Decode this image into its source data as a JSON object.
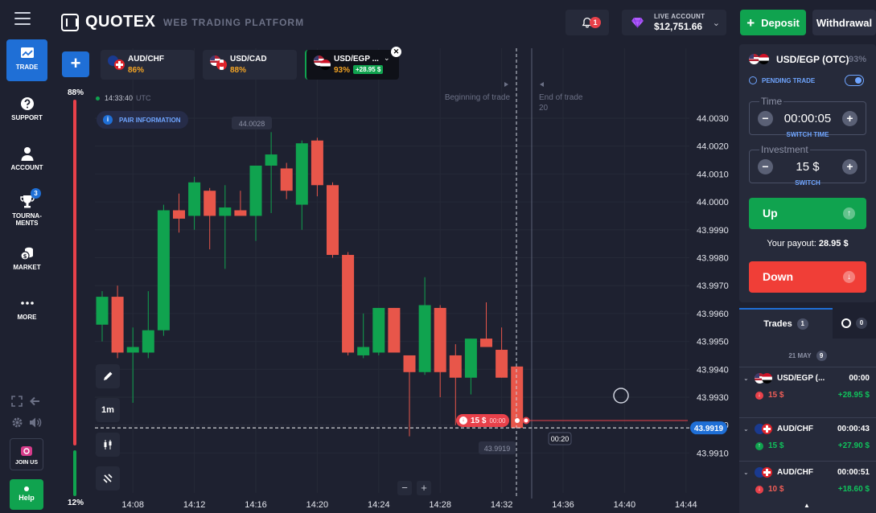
{
  "header": {
    "logo": "QUOTEX",
    "platform": "WEB TRADING PLATFORM",
    "notifications": "1",
    "account_label": "LIVE ACCOUNT",
    "account_balance": "$12,751.66",
    "deposit": "Deposit",
    "withdrawal": "Withdrawal"
  },
  "sidebar": {
    "items": [
      {
        "label": "TRADE",
        "icon": "chart-icon"
      },
      {
        "label": "SUPPORT",
        "icon": "question-icon"
      },
      {
        "label": "ACCOUNT",
        "icon": "user-icon"
      },
      {
        "label": "TOURNA-\nMENTS",
        "icon": "trophy-icon",
        "badge": "3"
      },
      {
        "label": "MARKET",
        "icon": "coins-icon"
      },
      {
        "label": "MORE",
        "icon": "dots-icon"
      }
    ],
    "joinus": "JOIN US",
    "help": "Help"
  },
  "assets": [
    {
      "name": "AUD/CHF",
      "pct": "86%"
    },
    {
      "name": "USD/CAD",
      "pct": "88%"
    },
    {
      "name": "USD/EGP ...",
      "pct": "93%",
      "badge": "+28.95 $"
    }
  ],
  "chart_overlay": {
    "pct_top": "88%",
    "pct_bottom": "12%",
    "server_time": "14:33:40",
    "utc": "UTC",
    "pair_info": "PAIR INFORMATION",
    "timeframe": "1m",
    "beginning_label": "Beginning of trade",
    "end_label": "End of trade",
    "end_value": "20",
    "price_hover": "44.0028",
    "price_cross": "43.9919",
    "timer": "00:20",
    "current_price": "43.9919",
    "trade_amount": "15 $",
    "trade_time": "00:00"
  },
  "chart_data": {
    "type": "candlestick",
    "y_ticks": [
      "44.0030",
      "44.0020",
      "44.0010",
      "44.0000",
      "43.9990",
      "43.9980",
      "43.9970",
      "43.9960",
      "43.9950",
      "43.9940",
      "43.9930",
      "43.9920",
      "43.9910"
    ],
    "x_ticks": [
      "14:08",
      "14:12",
      "14:16",
      "14:20",
      "14:24",
      "14:28",
      "14:32",
      "14:36",
      "14:40",
      "14:44"
    ],
    "ylim": [
      43.9906,
      44.0034
    ],
    "candles": [
      {
        "t": "14:06",
        "o": 43.9956,
        "h": 43.9968,
        "l": 43.995,
        "c": 43.9966,
        "dir": "up"
      },
      {
        "t": "14:07",
        "o": 43.9966,
        "h": 43.997,
        "l": 43.9944,
        "c": 43.9946,
        "dir": "down"
      },
      {
        "t": "14:08",
        "o": 43.9946,
        "h": 43.9955,
        "l": 43.9928,
        "c": 43.9948,
        "dir": "up"
      },
      {
        "t": "14:09",
        "o": 43.9946,
        "h": 43.9968,
        "l": 43.9944,
        "c": 43.9954,
        "dir": "up"
      },
      {
        "t": "14:10",
        "o": 43.9954,
        "h": 43.9999,
        "l": 43.9952,
        "c": 43.9997,
        "dir": "up"
      },
      {
        "t": "14:11",
        "o": 43.9997,
        "h": 44.0003,
        "l": 43.9989,
        "c": 43.9994,
        "dir": "down"
      },
      {
        "t": "14:12",
        "o": 43.9995,
        "h": 44.0009,
        "l": 43.999,
        "c": 44.0007,
        "dir": "up"
      },
      {
        "t": "14:13",
        "o": 44.0004,
        "h": 44.0005,
        "l": 43.9983,
        "c": 43.9995,
        "dir": "down"
      },
      {
        "t": "14:14",
        "o": 43.9995,
        "h": 44.0006,
        "l": 43.9976,
        "c": 43.9998,
        "dir": "up"
      },
      {
        "t": "14:15",
        "o": 43.9997,
        "h": 44.0004,
        "l": 43.9996,
        "c": 43.9995,
        "dir": "down"
      },
      {
        "t": "14:16",
        "o": 43.9995,
        "h": 44.0012,
        "l": 43.9986,
        "c": 44.0013,
        "dir": "up"
      },
      {
        "t": "14:17",
        "o": 44.0017,
        "h": 44.0025,
        "l": 43.9996,
        "c": 44.0013,
        "dir": "up"
      },
      {
        "t": "14:18",
        "o": 44.0012,
        "h": 44.0014,
        "l": 44.0001,
        "c": 44.0004,
        "dir": "down"
      },
      {
        "t": "14:19",
        "o": 43.9999,
        "h": 44.0022,
        "l": 43.999,
        "c": 44.0021,
        "dir": "up"
      },
      {
        "t": "14:20",
        "o": 44.0022,
        "h": 44.0023,
        "l": 44.0002,
        "c": 44.0006,
        "dir": "down"
      },
      {
        "t": "14:21",
        "o": 44.0006,
        "h": 44.0007,
        "l": 43.998,
        "c": 43.9981,
        "dir": "down"
      },
      {
        "t": "14:22",
        "o": 43.9981,
        "h": 43.9982,
        "l": 43.9945,
        "c": 43.9946,
        "dir": "down"
      },
      {
        "t": "14:23",
        "o": 43.9945,
        "h": 43.996,
        "l": 43.9944,
        "c": 43.9948,
        "dir": "up"
      },
      {
        "t": "14:24",
        "o": 43.9946,
        "h": 43.9962,
        "l": 43.9945,
        "c": 43.9962,
        "dir": "up"
      },
      {
        "t": "14:25",
        "o": 43.9962,
        "h": 43.9962,
        "l": 43.9946,
        "c": 43.9946,
        "dir": "down"
      },
      {
        "t": "14:26",
        "o": 43.9945,
        "h": 43.9945,
        "l": 43.9916,
        "c": 43.9939,
        "dir": "down"
      },
      {
        "t": "14:27",
        "o": 43.9939,
        "h": 43.9973,
        "l": 43.9938,
        "c": 43.9963,
        "dir": "up"
      },
      {
        "t": "14:28",
        "o": 43.9962,
        "h": 43.9963,
        "l": 43.993,
        "c": 43.9939,
        "dir": "down"
      },
      {
        "t": "14:29",
        "o": 43.9945,
        "h": 43.9949,
        "l": 43.992,
        "c": 43.9937,
        "dir": "down"
      },
      {
        "t": "14:30",
        "o": 43.9937,
        "h": 43.9951,
        "l": 43.9931,
        "c": 43.9951,
        "dir": "up"
      },
      {
        "t": "14:31",
        "o": 43.9951,
        "h": 43.9964,
        "l": 43.9948,
        "c": 43.9948,
        "dir": "down"
      },
      {
        "t": "14:32",
        "o": 43.9947,
        "h": 43.9955,
        "l": 43.9937,
        "c": 43.9937,
        "dir": "down"
      },
      {
        "t": "14:33",
        "o": 43.9941,
        "h": 43.9941,
        "l": 43.9919,
        "c": 43.9919,
        "dir": "down"
      }
    ],
    "colors": {
      "up": "#10a34f",
      "down": "#e8564a"
    }
  },
  "panel": {
    "asset": "USD/EGP (OTC)",
    "pct": "93%",
    "pending": "PENDING TRADE",
    "time_label": "Time",
    "time_value": "00:00:05",
    "switch_time": "SWITCH TIME",
    "investment_label": "Investment",
    "investment_value": "15 $",
    "switch": "SWITCH",
    "up": "Up",
    "payout_label": "Your payout:",
    "payout_value": "28.95 $",
    "down": "Down"
  },
  "trades": {
    "tab_label": "Trades",
    "tab_count": "1",
    "history_count": "0",
    "date": "21 MAY",
    "date_count": "9",
    "rows": [
      {
        "asset": "USD/EGP (...",
        "time": "00:00",
        "amount": "15 $",
        "dir": "down",
        "profit": "+28.95 $"
      },
      {
        "asset": "AUD/CHF",
        "time": "00:00:43",
        "amount": "15 $",
        "dir": "up",
        "profit": "+27.90 $"
      },
      {
        "asset": "AUD/CHF",
        "time": "00:00:51",
        "amount": "10 $",
        "dir": "down",
        "profit": "+18.60 $"
      }
    ]
  }
}
